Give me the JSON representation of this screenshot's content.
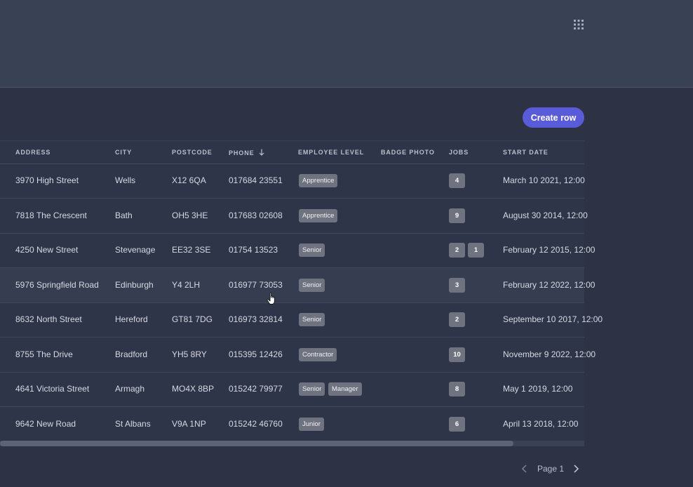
{
  "table": {
    "columns": {
      "address": "ADDRESS",
      "city": "CITY",
      "postcode": "POSTCODE",
      "phone": "PHONE",
      "level": "EMPLOYEE LEVEL",
      "badge": "BADGE PHOTO",
      "jobs": "JOBS",
      "start": "START DATE"
    },
    "sort": {
      "column": "phone",
      "direction": "descending",
      "icon": "arrow-down-icon"
    },
    "rows": [
      {
        "address": "3970 High Street",
        "city": "Wells",
        "postcode": "X12 6QA",
        "phone": "017684 23551",
        "levels": [
          "Apprentice"
        ],
        "jobs": [
          "4"
        ],
        "start": "March 10 2021, 12:00"
      },
      {
        "address": "7818 The Crescent",
        "city": "Bath",
        "postcode": "OH5 3HE",
        "phone": "017683 02608",
        "levels": [
          "Apprentice"
        ],
        "jobs": [
          "9"
        ],
        "start": "August 30 2014, 12:00"
      },
      {
        "address": "4250 New Street",
        "city": "Stevenage",
        "postcode": "EE32 3SE",
        "phone": "01754 13523",
        "levels": [
          "Senior"
        ],
        "jobs": [
          "2",
          "1"
        ],
        "start": "February 12 2015, 12:00"
      },
      {
        "address": "5976 Springfield Road",
        "city": "Edinburgh",
        "postcode": "Y4 2LH",
        "phone": "016977 73053",
        "levels": [
          "Senior"
        ],
        "jobs": [
          "3"
        ],
        "start": "February 12 2022, 12:00"
      },
      {
        "address": "8632 North Street",
        "city": "Hereford",
        "postcode": "GT81 7DG",
        "phone": "016973 32814",
        "levels": [
          "Senior"
        ],
        "jobs": [
          "2"
        ],
        "start": "September 10 2017, 12:00"
      },
      {
        "address": "8755 The Drive",
        "city": "Bradford",
        "postcode": "YH5 8RY",
        "phone": "015395 12426",
        "levels": [
          "Contractor"
        ],
        "jobs": [
          "10"
        ],
        "start": "November 9 2022, 12:00"
      },
      {
        "address": "4641 Victoria Street",
        "city": "Armagh",
        "postcode": "MO4X 8BP",
        "phone": "015242 79977",
        "levels": [
          "Senior",
          "Manager"
        ],
        "jobs": [
          "8"
        ],
        "start": "May 1 2019, 12:00"
      },
      {
        "address": "9642 New Road",
        "city": "St Albans",
        "postcode": "V9A 1NP",
        "phone": "015242 46760",
        "levels": [
          "Junior"
        ],
        "jobs": [
          "6"
        ],
        "start": "April 13 2018, 12:00"
      }
    ]
  },
  "toolbar": {
    "create_label": "Create row"
  },
  "header": {
    "apps_icon": "grid-icon"
  },
  "pagination": {
    "label": "Page 1",
    "prev_icon": "chevron-left-icon",
    "next_icon": "chevron-right-icon"
  },
  "colors": {
    "background": "#2d3345",
    "header": "#394155",
    "accent": "#5a5bd8",
    "tag": "#6f7380"
  },
  "cursor_icon": "hand-pointer-icon"
}
